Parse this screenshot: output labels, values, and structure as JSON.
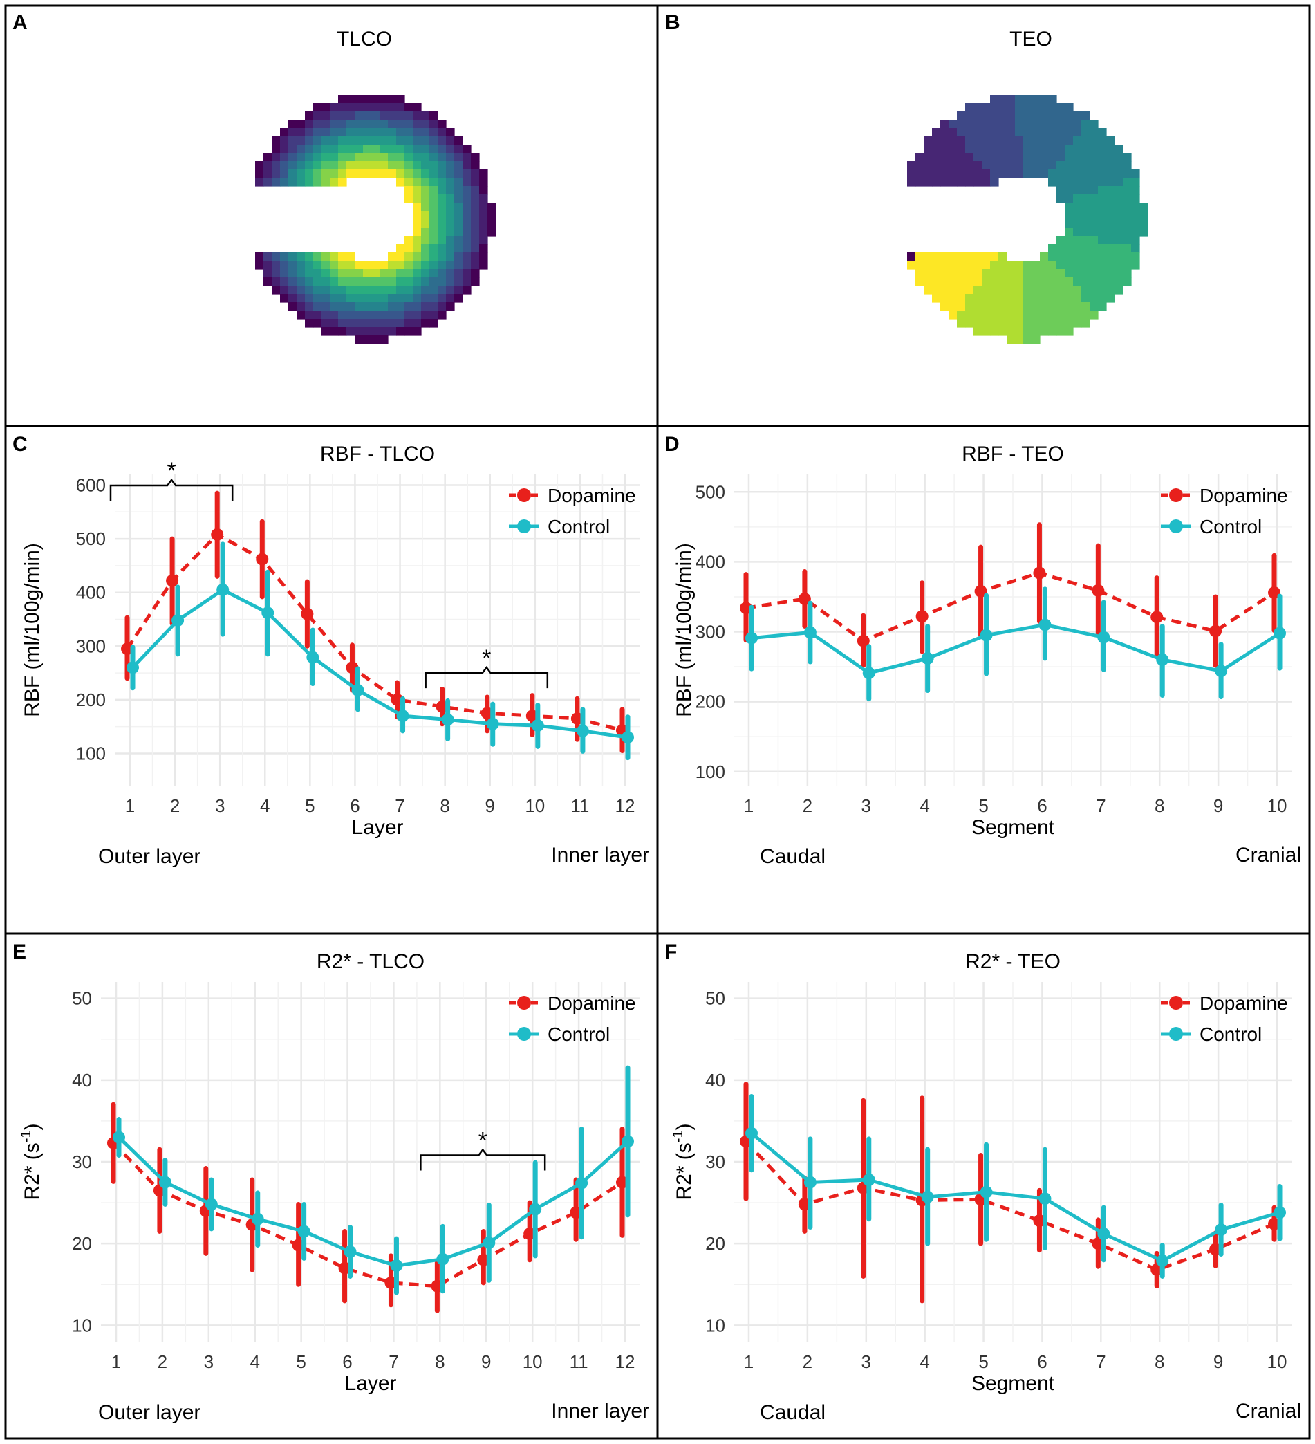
{
  "colors": {
    "dopamine": "#e8201c",
    "control": "#1fbcc8",
    "grid": "#e6e6e6",
    "frame": "#000000"
  },
  "panels": {
    "A": {
      "label": "A",
      "title": "TLCO",
      "kind": "viridis-radial-layers"
    },
    "B": {
      "label": "B",
      "title": "TEO",
      "kind": "viridis-angular-segments"
    }
  },
  "chart_data": [
    {
      "id": "C",
      "label": "C",
      "type": "line",
      "title": "RBF - TLCO",
      "xlabel": "Layer",
      "ylabel": "RBF (ml/100g/min)",
      "categories": [
        "1",
        "2",
        "3",
        "4",
        "5",
        "6",
        "7",
        "8",
        "9",
        "10",
        "11",
        "12"
      ],
      "ylim": [
        40,
        620
      ],
      "yticks": [
        100,
        200,
        300,
        400,
        500,
        600
      ],
      "left_note": "Outer layer",
      "right_note": "Inner layer",
      "legend": [
        "Dopamine",
        "Control"
      ],
      "series": [
        {
          "name": "Dopamine",
          "values": [
            295,
            422,
            508,
            462,
            360,
            260,
            200,
            187,
            175,
            170,
            165,
            143
          ],
          "lower": [
            240,
            342,
            430,
            392,
            300,
            218,
            168,
            155,
            142,
            135,
            126,
            105
          ],
          "upper": [
            353,
            500,
            585,
            532,
            420,
            302,
            232,
            220,
            205,
            208,
            202,
            182
          ]
        },
        {
          "name": "Control",
          "values": [
            260,
            348,
            405,
            362,
            279,
            218,
            170,
            163,
            155,
            152,
            142,
            130
          ],
          "lower": [
            222,
            285,
            322,
            285,
            230,
            182,
            142,
            127,
            117,
            113,
            104,
            92
          ],
          "upper": [
            298,
            410,
            490,
            438,
            330,
            258,
            202,
            198,
            192,
            190,
            182,
            168
          ]
        }
      ],
      "brackets": [
        {
          "from": "1",
          "to": "3",
          "symbol": "*"
        },
        {
          "from": "8",
          "to": "10",
          "symbol": "*"
        }
      ]
    },
    {
      "id": "D",
      "label": "D",
      "type": "line",
      "title": "RBF - TEO",
      "xlabel": "Segment",
      "ylabel": "RBF (ml/100g/min)",
      "categories": [
        "1",
        "2",
        "3",
        "4",
        "5",
        "6",
        "7",
        "8",
        "9",
        "10"
      ],
      "ylim": [
        80,
        525
      ],
      "yticks": [
        100,
        200,
        300,
        400,
        500
      ],
      "left_note": "Caudal",
      "right_note": "Cranial",
      "legend": [
        "Dopamine",
        "Control"
      ],
      "series": [
        {
          "name": "Dopamine",
          "values": [
            334,
            347,
            287,
            322,
            358,
            384,
            359,
            321,
            301,
            356
          ],
          "lower": [
            288,
            308,
            252,
            272,
            295,
            315,
            295,
            265,
            252,
            302
          ],
          "upper": [
            382,
            386,
            323,
            370,
            421,
            453,
            423,
            377,
            350,
            409
          ]
        },
        {
          "name": "Control",
          "values": [
            291,
            299,
            241,
            262,
            295,
            310,
            292,
            260,
            244,
            298
          ],
          "lower": [
            247,
            257,
            204,
            216,
            240,
            262,
            246,
            209,
            207,
            248
          ],
          "upper": [
            335,
            341,
            279,
            308,
            352,
            361,
            342,
            308,
            282,
            351
          ]
        }
      ],
      "brackets": []
    },
    {
      "id": "E",
      "label": "E",
      "type": "line",
      "title": "R2* - TLCO",
      "xlabel": "Layer",
      "ylabel": "R2* (s-1)",
      "ylabel_base": "R2* (s",
      "ylabel_sup": "-1",
      "ylabel_end": ")",
      "categories": [
        "1",
        "2",
        "3",
        "4",
        "5",
        "6",
        "7",
        "8",
        "9",
        "10",
        "11",
        "12"
      ],
      "ylim": [
        8,
        52
      ],
      "yticks": [
        10,
        20,
        30,
        40,
        50
      ],
      "left_note": "Outer layer",
      "right_note": "Inner layer",
      "legend": [
        "Dopamine",
        "Control"
      ],
      "series": [
        {
          "name": "Dopamine",
          "values": [
            32.3,
            26.5,
            24.0,
            22.3,
            19.8,
            17.0,
            15.2,
            14.8,
            18.0,
            21.2,
            23.8,
            27.5
          ],
          "lower": [
            27.6,
            21.5,
            18.8,
            16.8,
            15.0,
            13.0,
            12.5,
            11.8,
            15.2,
            18.0,
            20.5,
            21.0
          ],
          "upper": [
            37.0,
            31.5,
            29.2,
            27.8,
            24.8,
            21.5,
            18.5,
            17.8,
            21.5,
            25.0,
            27.8,
            34.0
          ]
        },
        {
          "name": "Control",
          "values": [
            33.0,
            27.5,
            24.8,
            23.0,
            21.5,
            19.0,
            17.3,
            18.1,
            20.1,
            24.2,
            27.4,
            32.5
          ],
          "lower": [
            30.8,
            24.8,
            21.8,
            19.8,
            18.2,
            16.0,
            14.0,
            14.2,
            15.5,
            18.5,
            20.8,
            23.5
          ],
          "upper": [
            35.2,
            30.2,
            27.8,
            26.2,
            24.8,
            22.0,
            20.6,
            22.1,
            24.7,
            29.9,
            34.0,
            41.5
          ]
        }
      ],
      "brackets": [
        {
          "from": "8",
          "to": "10",
          "symbol": "*"
        }
      ]
    },
    {
      "id": "F",
      "label": "F",
      "type": "line",
      "title": "R2* - TEO",
      "xlabel": "Segment",
      "ylabel": "R2* (s-1)",
      "ylabel_base": "R2* (s",
      "ylabel_sup": "-1",
      "ylabel_end": ")",
      "categories": [
        "1",
        "2",
        "3",
        "4",
        "5",
        "6",
        "7",
        "8",
        "9",
        "10"
      ],
      "ylim": [
        8,
        52
      ],
      "yticks": [
        10,
        20,
        30,
        40,
        50
      ],
      "left_note": "Caudal",
      "right_note": "Cranial",
      "legend": [
        "Dopamine",
        "Control"
      ],
      "series": [
        {
          "name": "Dopamine",
          "values": [
            32.5,
            24.8,
            26.8,
            25.3,
            25.4,
            22.8,
            20.0,
            16.8,
            19.3,
            22.4
          ],
          "lower": [
            25.5,
            21.5,
            16.0,
            13.0,
            20.0,
            19.2,
            17.2,
            14.8,
            17.3,
            20.5
          ],
          "upper": [
            39.5,
            28.0,
            37.5,
            37.8,
            30.8,
            26.5,
            22.9,
            18.8,
            21.3,
            24.4
          ]
        },
        {
          "name": "Control",
          "values": [
            33.5,
            27.5,
            27.8,
            25.7,
            26.3,
            25.5,
            21.2,
            17.9,
            21.7,
            23.8
          ],
          "lower": [
            29.0,
            22.0,
            23.0,
            20.0,
            20.5,
            19.5,
            18.0,
            16.0,
            18.7,
            20.6
          ],
          "upper": [
            38.0,
            32.8,
            32.8,
            31.5,
            32.1,
            31.5,
            24.4,
            19.8,
            24.7,
            27.0
          ]
        }
      ],
      "brackets": []
    }
  ]
}
